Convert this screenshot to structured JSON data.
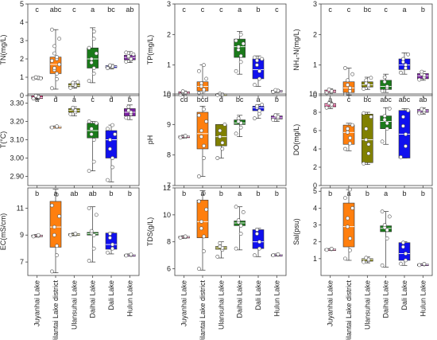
{
  "categories": [
    "Juyanhai Lake",
    "Jilantai Lake district",
    "Ulansuhai Lake",
    "Daihai Lake",
    "Dali Lake",
    "Hulun Lake"
  ],
  "colors": [
    "#d6357a",
    "#ff7f0e",
    "#808000",
    "#1a7a1a",
    "#1010ee",
    "#7a1fa2"
  ],
  "chart_data": [
    {
      "type": "box",
      "ylabel": "TN(mg/L)",
      "ylim": [
        0,
        5
      ],
      "yticks": [
        "0",
        "1",
        "2",
        "3",
        "4",
        "5"
      ],
      "letters": [
        "c",
        "abc",
        "c",
        "a",
        "bc",
        "ab"
      ],
      "boxes": [
        {
          "min": 0.9,
          "q1": 0.93,
          "median": 0.96,
          "q3": 1.0,
          "max": 1.05,
          "points": [
            0.92,
            0.95,
            0.97,
            0.99,
            1.0,
            0.94
          ]
        },
        {
          "min": 0.35,
          "q1": 1.2,
          "median": 1.7,
          "q3": 2.1,
          "max": 3.6,
          "points": [
            0.4,
            0.9,
            1.2,
            1.4,
            1.5,
            1.7,
            1.9,
            2.0,
            2.1,
            2.3,
            2.7,
            3.1,
            3.6
          ]
        },
        {
          "min": 0.4,
          "q1": 0.48,
          "median": 0.55,
          "q3": 0.65,
          "max": 0.75,
          "points": [
            0.42,
            0.5,
            0.55,
            0.6,
            0.7,
            0.74
          ]
        },
        {
          "min": 0.7,
          "q1": 1.5,
          "median": 2.0,
          "q3": 2.6,
          "max": 3.7,
          "points": [
            0.8,
            1.2,
            1.5,
            1.8,
            2.0,
            2.3,
            2.6,
            3.1,
            3.5
          ]
        },
        {
          "min": 1.45,
          "q1": 1.52,
          "median": 1.58,
          "q3": 1.63,
          "max": 1.7,
          "points": [
            1.5,
            1.55,
            1.6,
            1.62,
            1.65
          ]
        },
        {
          "min": 1.8,
          "q1": 1.95,
          "median": 2.08,
          "q3": 2.2,
          "max": 2.4,
          "points": [
            1.85,
            1.95,
            2.0,
            2.1,
            2.15,
            2.25,
            2.35
          ]
        }
      ]
    },
    {
      "type": "box",
      "ylabel": "TP(mg/L)",
      "ylim": [
        0,
        3
      ],
      "yticks": [
        "0",
        "1",
        "2",
        "3"
      ],
      "letters": [
        "c",
        "c",
        "c",
        "a",
        "b",
        "c"
      ],
      "boxes": [
        {
          "min": 0.02,
          "q1": 0.05,
          "median": 0.08,
          "q3": 0.12,
          "max": 0.15,
          "points": [
            0.03,
            0.06,
            0.09,
            0.11,
            0.14
          ]
        },
        {
          "min": 0.05,
          "q1": 0.15,
          "median": 0.3,
          "q3": 0.45,
          "max": 1.0,
          "points": [
            0.08,
            0.15,
            0.2,
            0.3,
            0.4,
            0.55,
            0.8,
            1.0
          ]
        },
        {
          "min": 0.01,
          "q1": 0.02,
          "median": 0.03,
          "q3": 0.05,
          "max": 0.07,
          "points": [
            0.02,
            0.03,
            0.04,
            0.06
          ]
        },
        {
          "min": 0.7,
          "q1": 1.25,
          "median": 1.6,
          "q3": 1.85,
          "max": 2.1,
          "points": [
            0.8,
            1.1,
            1.3,
            1.5,
            1.6,
            1.7,
            1.8,
            2.0
          ]
        },
        {
          "min": 0.3,
          "q1": 0.55,
          "median": 0.85,
          "q3": 1.2,
          "max": 1.3,
          "points": [
            0.35,
            0.55,
            0.8,
            1.0,
            1.15,
            1.2,
            1.25
          ]
        },
        {
          "min": 0.1,
          "q1": 0.13,
          "median": 0.15,
          "q3": 0.17,
          "max": 0.2,
          "points": [
            0.12,
            0.14,
            0.16,
            0.18
          ]
        }
      ]
    },
    {
      "type": "box",
      "ylabel": "NH₄-N(mg/L)",
      "ylim": [
        0,
        3
      ],
      "yticks": [
        "0",
        "1",
        "2",
        "3"
      ],
      "letters": [
        "c",
        "c",
        "bc",
        "c",
        "a",
        "b"
      ],
      "boxes": [
        {
          "min": 0.05,
          "q1": 0.1,
          "median": 0.14,
          "q3": 0.18,
          "max": 0.22,
          "points": [
            0.08,
            0.12,
            0.15,
            0.2
          ]
        },
        {
          "min": 0.02,
          "q1": 0.1,
          "median": 0.25,
          "q3": 0.45,
          "max": 0.9,
          "points": [
            0.05,
            0.15,
            0.25,
            0.35,
            0.5,
            0.7,
            0.9
          ]
        },
        {
          "min": 0.2,
          "q1": 0.28,
          "median": 0.35,
          "q3": 0.45,
          "max": 0.6,
          "points": [
            0.22,
            0.3,
            0.35,
            0.4,
            0.5,
            0.58
          ]
        },
        {
          "min": 0.1,
          "q1": 0.2,
          "median": 0.3,
          "q3": 0.5,
          "max": 0.7,
          "points": [
            0.15,
            0.25,
            0.3,
            0.45,
            0.6
          ]
        },
        {
          "min": 0.7,
          "q1": 0.85,
          "median": 1.0,
          "q3": 1.2,
          "max": 1.4,
          "points": [
            0.75,
            0.9,
            1.0,
            1.1,
            1.2,
            1.35
          ]
        },
        {
          "min": 0.5,
          "q1": 0.55,
          "median": 0.65,
          "q3": 0.72,
          "max": 0.8,
          "points": [
            0.52,
            0.6,
            0.66,
            0.7,
            0.78
          ]
        }
      ]
    },
    {
      "type": "box",
      "ylabel": "T(°C)",
      "ylim": [
        2.85,
        3.35
      ],
      "yticks": [
        "2.90",
        "3.00",
        "3.10",
        "3.20",
        "3.30"
      ],
      "letters": [
        "a",
        "d",
        "a",
        "c",
        "d",
        "b"
      ],
      "boxes": [
        {
          "min": 3.32,
          "q1": 3.325,
          "median": 3.33,
          "q3": 3.34,
          "max": 3.345,
          "points": [
            3.325,
            3.33,
            3.335,
            3.34
          ]
        },
        {
          "min": 3.165,
          "q1": 3.168,
          "median": 3.17,
          "q3": 3.172,
          "max": 3.175,
          "points": [
            3.167,
            3.17,
            3.173
          ]
        },
        {
          "min": 3.23,
          "q1": 3.25,
          "median": 3.26,
          "q3": 3.27,
          "max": 3.28,
          "points": [
            3.24,
            3.25,
            3.26,
            3.27,
            3.275
          ]
        },
        {
          "min": 2.93,
          "q1": 3.11,
          "median": 3.15,
          "q3": 3.19,
          "max": 3.2,
          "points": [
            2.93,
            2.98,
            3.1,
            3.13,
            3.16,
            3.19,
            3.2
          ]
        },
        {
          "min": 2.87,
          "q1": 3.0,
          "median": 3.1,
          "q3": 3.15,
          "max": 3.18,
          "points": [
            2.88,
            2.95,
            3.0,
            3.05,
            3.1,
            3.13,
            3.16,
            3.18
          ]
        },
        {
          "min": 3.21,
          "q1": 3.23,
          "median": 3.25,
          "q3": 3.27,
          "max": 3.29,
          "points": [
            3.22,
            3.24,
            3.25,
            3.26,
            3.28
          ]
        }
      ]
    },
    {
      "type": "box",
      "ylabel": "pH",
      "ylim": [
        7.0,
        10.0
      ],
      "yticks": [
        "7",
        "8",
        "9",
        "10"
      ],
      "letters": [
        "cd",
        "bcd",
        "d",
        "bc",
        "a",
        "b"
      ],
      "boxes": [
        {
          "min": 8.55,
          "q1": 8.58,
          "median": 8.6,
          "q3": 8.62,
          "max": 8.65,
          "points": [
            8.57,
            8.6,
            8.63
          ]
        },
        {
          "min": 7.3,
          "q1": 8.2,
          "median": 8.7,
          "q3": 9.4,
          "max": 9.6,
          "points": [
            7.3,
            7.9,
            8.3,
            8.6,
            8.8,
            9.1,
            9.3,
            9.5
          ]
        },
        {
          "min": 7.9,
          "q1": 8.3,
          "median": 8.6,
          "q3": 9.0,
          "max": 9.0,
          "points": [
            7.9,
            8.2,
            8.4,
            8.6,
            8.8,
            9.0
          ]
        },
        {
          "min": 8.6,
          "q1": 9.0,
          "median": 9.05,
          "q3": 9.15,
          "max": 9.3,
          "points": [
            8.7,
            8.9,
            9.05,
            9.1,
            9.2
          ]
        },
        {
          "min": 9.2,
          "q1": 9.45,
          "median": 9.55,
          "q3": 9.6,
          "max": 9.65,
          "points": [
            9.2,
            9.35,
            9.45,
            9.55,
            9.6,
            9.65
          ]
        },
        {
          "min": 9.1,
          "q1": 9.18,
          "median": 9.22,
          "q3": 9.28,
          "max": 9.35,
          "points": [
            9.15,
            9.2,
            9.25,
            9.3
          ]
        }
      ]
    },
    {
      "type": "box",
      "ylabel": "DO(mg/L)",
      "ylim": [
        0,
        10
      ],
      "yticks": [
        "0",
        "2",
        "4",
        "6",
        "8",
        "10"
      ],
      "letters": [
        "a",
        "c",
        "bc",
        "abc",
        "abc",
        "ab"
      ],
      "boxes": [
        {
          "min": 8.4,
          "q1": 8.6,
          "median": 8.8,
          "q3": 8.95,
          "max": 9.1,
          "points": [
            8.5,
            8.7,
            8.85,
            9.0
          ]
        },
        {
          "min": 3.8,
          "q1": 4.5,
          "median": 5.8,
          "q3": 6.6,
          "max": 6.8,
          "points": [
            4.0,
            4.6,
            5.2,
            5.8,
            6.2,
            6.6
          ]
        },
        {
          "min": 2.3,
          "q1": 2.5,
          "median": 5.0,
          "q3": 7.8,
          "max": 8.0,
          "points": [
            2.4,
            3.5,
            4.5,
            5.0,
            6.2,
            7.5,
            7.9
          ]
        },
        {
          "min": 4.5,
          "q1": 6.2,
          "median": 7.0,
          "q3": 7.6,
          "max": 8.5,
          "points": [
            4.8,
            6.2,
            6.8,
            7.2,
            7.6,
            8.4
          ]
        },
        {
          "min": 3.0,
          "q1": 3.0,
          "median": 5.6,
          "q3": 8.2,
          "max": 8.4,
          "points": [
            3.1,
            4.3,
            5.6,
            6.5,
            7.5,
            8.2
          ]
        },
        {
          "min": 7.8,
          "q1": 8.0,
          "median": 8.15,
          "q3": 8.3,
          "max": 8.5,
          "points": [
            7.9,
            8.05,
            8.2,
            8.35
          ]
        }
      ]
    },
    {
      "type": "box",
      "ylabel": "EC(mS/cm)",
      "ylim": [
        6.0,
        12.5
      ],
      "yticks": [
        "7",
        "9",
        "11"
      ],
      "letters": [
        "b",
        "a",
        "ab",
        "ab",
        "b",
        "b"
      ],
      "boxes": [
        {
          "min": 8.85,
          "q1": 8.9,
          "median": 8.95,
          "q3": 9.0,
          "max": 9.05,
          "points": [
            8.9,
            8.95,
            9.0
          ]
        },
        {
          "min": 6.2,
          "q1": 8.1,
          "median": 9.6,
          "q3": 11.5,
          "max": 12.4,
          "points": [
            6.3,
            7.5,
            8.2,
            9.0,
            9.6,
            10.4,
            11.2,
            12.0
          ]
        },
        {
          "min": 8.95,
          "q1": 9.0,
          "median": 9.05,
          "q3": 9.1,
          "max": 9.15,
          "points": [
            9.0,
            9.05,
            9.1
          ]
        },
        {
          "min": 7.0,
          "q1": 9.0,
          "median": 9.1,
          "q3": 9.2,
          "max": 11.1,
          "points": [
            7.1,
            8.0,
            9.0,
            9.15,
            9.3,
            10.5,
            11.0
          ]
        },
        {
          "min": 7.6,
          "q1": 7.95,
          "median": 8.3,
          "q3": 9.15,
          "max": 9.2,
          "points": [
            7.7,
            8.0,
            8.3,
            8.8,
            9.1
          ]
        },
        {
          "min": 7.45,
          "q1": 7.5,
          "median": 7.52,
          "q3": 7.55,
          "max": 7.6,
          "points": [
            7.48,
            7.52,
            7.56
          ]
        }
      ]
    },
    {
      "type": "box",
      "ylabel": "TDS(g/L)",
      "ylim": [
        5.5,
        12.0
      ],
      "yticks": [
        "6",
        "8",
        "10",
        "12"
      ],
      "letters": [
        "b",
        "a",
        "b",
        "a",
        "b",
        "b"
      ],
      "boxes": [
        {
          "min": 8.25,
          "q1": 8.3,
          "median": 8.35,
          "q3": 8.4,
          "max": 8.45,
          "points": [
            8.3,
            8.35,
            8.4
          ]
        },
        {
          "min": 5.9,
          "q1": 8.3,
          "median": 9.5,
          "q3": 11.1,
          "max": 11.8,
          "points": [
            6.0,
            7.3,
            8.4,
            9.0,
            9.5,
            10.4,
            11.0,
            11.6
          ]
        },
        {
          "min": 6.8,
          "q1": 7.45,
          "median": 7.55,
          "q3": 7.65,
          "max": 8.0,
          "points": [
            6.9,
            7.4,
            7.55,
            7.65,
            7.9
          ]
        },
        {
          "min": 7.4,
          "q1": 9.2,
          "median": 9.4,
          "q3": 9.55,
          "max": 10.6,
          "points": [
            7.5,
            8.6,
            9.2,
            9.45,
            9.6,
            10.2,
            10.6
          ]
        },
        {
          "min": 6.9,
          "q1": 7.5,
          "median": 8.0,
          "q3": 8.9,
          "max": 9.0,
          "points": [
            7.0,
            7.5,
            8.0,
            8.6,
            8.9
          ]
        },
        {
          "min": 6.95,
          "q1": 7.0,
          "median": 7.03,
          "q3": 7.06,
          "max": 7.1,
          "points": [
            7.0,
            7.04,
            7.08
          ]
        }
      ]
    },
    {
      "type": "box",
      "ylabel": "Sal(psu)",
      "ylim": [
        0,
        5.2
      ],
      "yticks": [
        "1",
        "2",
        "3",
        "4",
        "5"
      ],
      "letters": [
        "b",
        "a",
        "b",
        "a",
        "b",
        "b"
      ],
      "boxes": [
        {
          "min": 1.5,
          "q1": 1.52,
          "median": 1.55,
          "q3": 1.58,
          "max": 1.6,
          "points": [
            1.52,
            1.56,
            1.59
          ]
        },
        {
          "min": 0.9,
          "q1": 1.7,
          "median": 2.9,
          "q3": 4.3,
          "max": 5.1,
          "points": [
            1.0,
            1.5,
            2.2,
            2.9,
            3.4,
            4.0,
            4.6,
            5.1
          ]
        },
        {
          "min": 0.75,
          "q1": 0.85,
          "median": 0.95,
          "q3": 1.0,
          "max": 1.1,
          "points": [
            0.8,
            0.9,
            0.95,
            1.05
          ]
        },
        {
          "min": 0.5,
          "q1": 2.6,
          "median": 2.8,
          "q3": 2.95,
          "max": 3.8,
          "points": [
            0.6,
            2.2,
            2.7,
            2.85,
            3.0,
            3.5,
            3.8
          ]
        },
        {
          "min": 0.6,
          "q1": 0.9,
          "median": 1.3,
          "q3": 1.95,
          "max": 2.0,
          "points": [
            0.7,
            0.9,
            1.3,
            1.7,
            1.95
          ]
        },
        {
          "min": 0.6,
          "q1": 0.62,
          "median": 0.65,
          "q3": 0.68,
          "max": 0.7,
          "points": [
            0.62,
            0.66,
            0.69
          ]
        }
      ]
    }
  ]
}
